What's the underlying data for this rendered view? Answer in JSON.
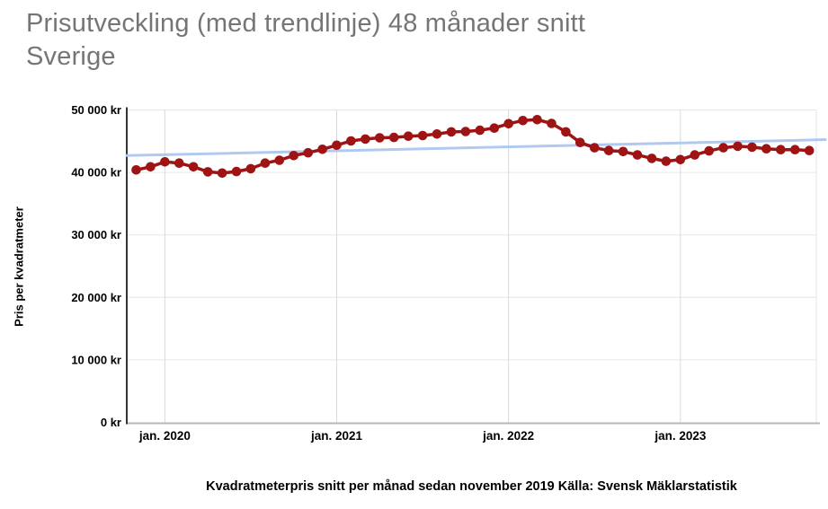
{
  "title": {
    "line1": "Prisutveckling (med trendlinje) 48 månader snitt",
    "line2": "Sverige"
  },
  "caption": "Kvadratmeterpris snitt per månad sedan november 2019 Källa: Svensk Mäklarstatistik",
  "colors": {
    "series": "#9e1313",
    "trendline": "#b0c9f0",
    "grid_horizontal": "#e6e6e6",
    "grid_vertical": "#dadada",
    "baseline": "#b7b7b7",
    "y_axis_line": "#333333",
    "title_text": "#757575",
    "label_text": "#000000",
    "background": "#ffffff"
  },
  "chart_data": {
    "type": "line",
    "title": "Prisutveckling (med trendlinje) 48 månader snitt Sverige",
    "xlabel": "",
    "ylabel": "Pris per kvadratmeter",
    "ylim": [
      0,
      50000
    ],
    "grid": true,
    "legend_position": "none",
    "unit": "kr",
    "x": [
      "nov. 2019",
      "dec. 2019",
      "jan. 2020",
      "feb. 2020",
      "mar. 2020",
      "apr. 2020",
      "maj 2020",
      "jun. 2020",
      "jul. 2020",
      "aug. 2020",
      "sep. 2020",
      "okt. 2020",
      "nov. 2020",
      "dec. 2020",
      "jan. 2021",
      "feb. 2021",
      "mar. 2021",
      "apr. 2021",
      "maj 2021",
      "jun. 2021",
      "jul. 2021",
      "aug. 2021",
      "sep. 2021",
      "okt. 2021",
      "nov. 2021",
      "dec. 2021",
      "jan. 2022",
      "feb. 2022",
      "mar. 2022",
      "apr. 2022",
      "maj 2022",
      "jun. 2022",
      "jul. 2022",
      "aug. 2022",
      "sep. 2022",
      "okt. 2022",
      "nov. 2022",
      "dec. 2022",
      "jan. 2023",
      "feb. 2023",
      "mar. 2023",
      "apr. 2023",
      "maj 2023",
      "jun. 2023",
      "jul. 2023",
      "aug. 2023",
      "sep. 2023",
      "okt. 2023"
    ],
    "series": [
      {
        "name": "Pris per kvadratmeter",
        "values": [
          40400,
          40900,
          41700,
          41500,
          40900,
          40100,
          39900,
          40150,
          40600,
          41500,
          41950,
          42700,
          43150,
          43700,
          44350,
          45050,
          45350,
          45550,
          45600,
          45800,
          45900,
          46150,
          46500,
          46550,
          46750,
          47100,
          47800,
          48300,
          48450,
          47850,
          46500,
          44800,
          43950,
          43500,
          43350,
          42800,
          42250,
          41800,
          42050,
          42800,
          43450,
          43950,
          44200,
          44050,
          43800,
          43650,
          43650,
          43500
        ]
      }
    ],
    "trendline": {
      "start_value": 42700,
      "end_value": 45250
    },
    "x_ticks": [
      {
        "label": "jan. 2020",
        "index": 2
      },
      {
        "label": "jan. 2021",
        "index": 14
      },
      {
        "label": "jan. 2022",
        "index": 26
      },
      {
        "label": "jan. 2023",
        "index": 38
      }
    ],
    "y_ticks": [
      {
        "label": "0 kr",
        "value": 0
      },
      {
        "label": "10 000 kr",
        "value": 10000
      },
      {
        "label": "20 000 kr",
        "value": 20000
      },
      {
        "label": "30 000 kr",
        "value": 30000
      },
      {
        "label": "40 000 kr",
        "value": 40000
      },
      {
        "label": "50 000 kr",
        "value": 50000
      }
    ]
  }
}
